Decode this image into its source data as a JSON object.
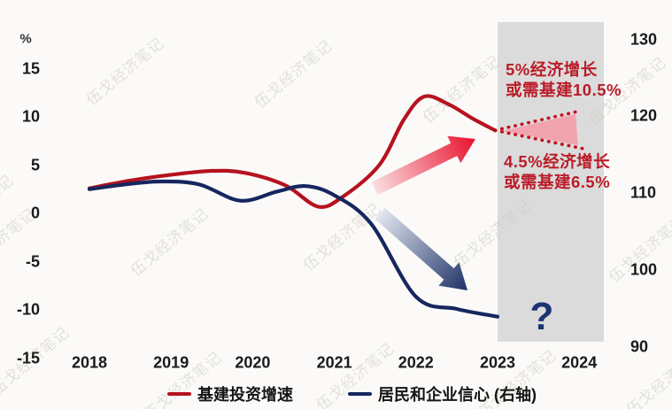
{
  "watermark": "伍戈经济笔记",
  "annotations": {
    "upper": [
      "5%经济增长",
      "或需基建10.5%"
    ],
    "lower": [
      "4.5%经济增长",
      "或需基建6.5%"
    ],
    "question_mark": "?"
  },
  "legend": [
    {
      "label": "基建投资增速",
      "color": "#b5121f"
    },
    {
      "label": "居民和企业信心 (右轴)",
      "color": "#16265e"
    }
  ],
  "colors": {
    "line_red": "#b5121f",
    "line_navy": "#16265e",
    "forecast_dot_red": "#c2121f",
    "cone_pink": "#f2a4ae",
    "band_gray": "#dbdbdb",
    "annotation_red": "#b91c28",
    "question_navy": "#1c3472",
    "arrow_red_tail": "#fadfe2",
    "arrow_red_tip": "#e8112d",
    "arrow_navy_tail": "#e2e6f0",
    "arrow_navy_tip": "#1e3266",
    "axis_text": "#1a1a1a",
    "watermark_gray": "#cfccc4"
  },
  "chart_data": {
    "type": "line",
    "title": "",
    "x_ticks": [
      "2018",
      "2019",
      "2020",
      "2021",
      "2022",
      "2023",
      "2024"
    ],
    "left_axis": {
      "unit": "%",
      "ticks": [
        15,
        10,
        5,
        0,
        -5,
        -10,
        -15
      ],
      "lim": [
        -15,
        15
      ]
    },
    "right_axis": {
      "ticks": [
        130,
        120,
        110,
        100,
        90
      ],
      "lim": [
        90,
        130
      ]
    },
    "grid": false,
    "legend_position": "bottom",
    "series": [
      {
        "name": "基建投资增速",
        "axis": "left",
        "color": "#b5121f",
        "style": "solid",
        "points": [
          [
            2018,
            2.6
          ],
          [
            2018.5,
            3.4
          ],
          [
            2019,
            4.0
          ],
          [
            2019.5,
            4.4
          ],
          [
            2019.9,
            4.2
          ],
          [
            2020.4,
            2.9
          ],
          [
            2020.8,
            0.7
          ],
          [
            2021.1,
            1.7
          ],
          [
            2021.55,
            5.0
          ],
          [
            2021.85,
            9.7
          ],
          [
            2022.1,
            12.1
          ],
          [
            2022.4,
            11.3
          ],
          [
            2022.7,
            9.8
          ],
          [
            2022.97,
            8.6
          ]
        ]
      },
      {
        "name": "居民和企业信心 (右轴)",
        "axis": "right",
        "color": "#16265e",
        "style": "solid",
        "points": [
          [
            2018,
            110.5
          ],
          [
            2018.5,
            111.2
          ],
          [
            2018.9,
            111.5
          ],
          [
            2019.35,
            111.1
          ],
          [
            2019.85,
            109.0
          ],
          [
            2020.3,
            110.2
          ],
          [
            2020.65,
            110.9
          ],
          [
            2021.0,
            109.7
          ],
          [
            2021.45,
            106.0
          ],
          [
            2022.0,
            96.5
          ],
          [
            2022.5,
            94.9
          ],
          [
            2023.0,
            93.9
          ]
        ]
      }
    ],
    "forecast": {
      "band_x": [
        2023.0,
        2024.3
      ],
      "upper_scenario": {
        "gdp_growth": "5%",
        "infra_needed": "10.5%",
        "points": [
          [
            2022.97,
            8.6
          ],
          [
            2024.0,
            10.6
          ]
        ]
      },
      "lower_scenario": {
        "gdp_growth": "4.5%",
        "infra_needed": "6.5%",
        "points": [
          [
            2022.97,
            8.6
          ],
          [
            2024.05,
            6.7
          ]
        ]
      }
    }
  }
}
